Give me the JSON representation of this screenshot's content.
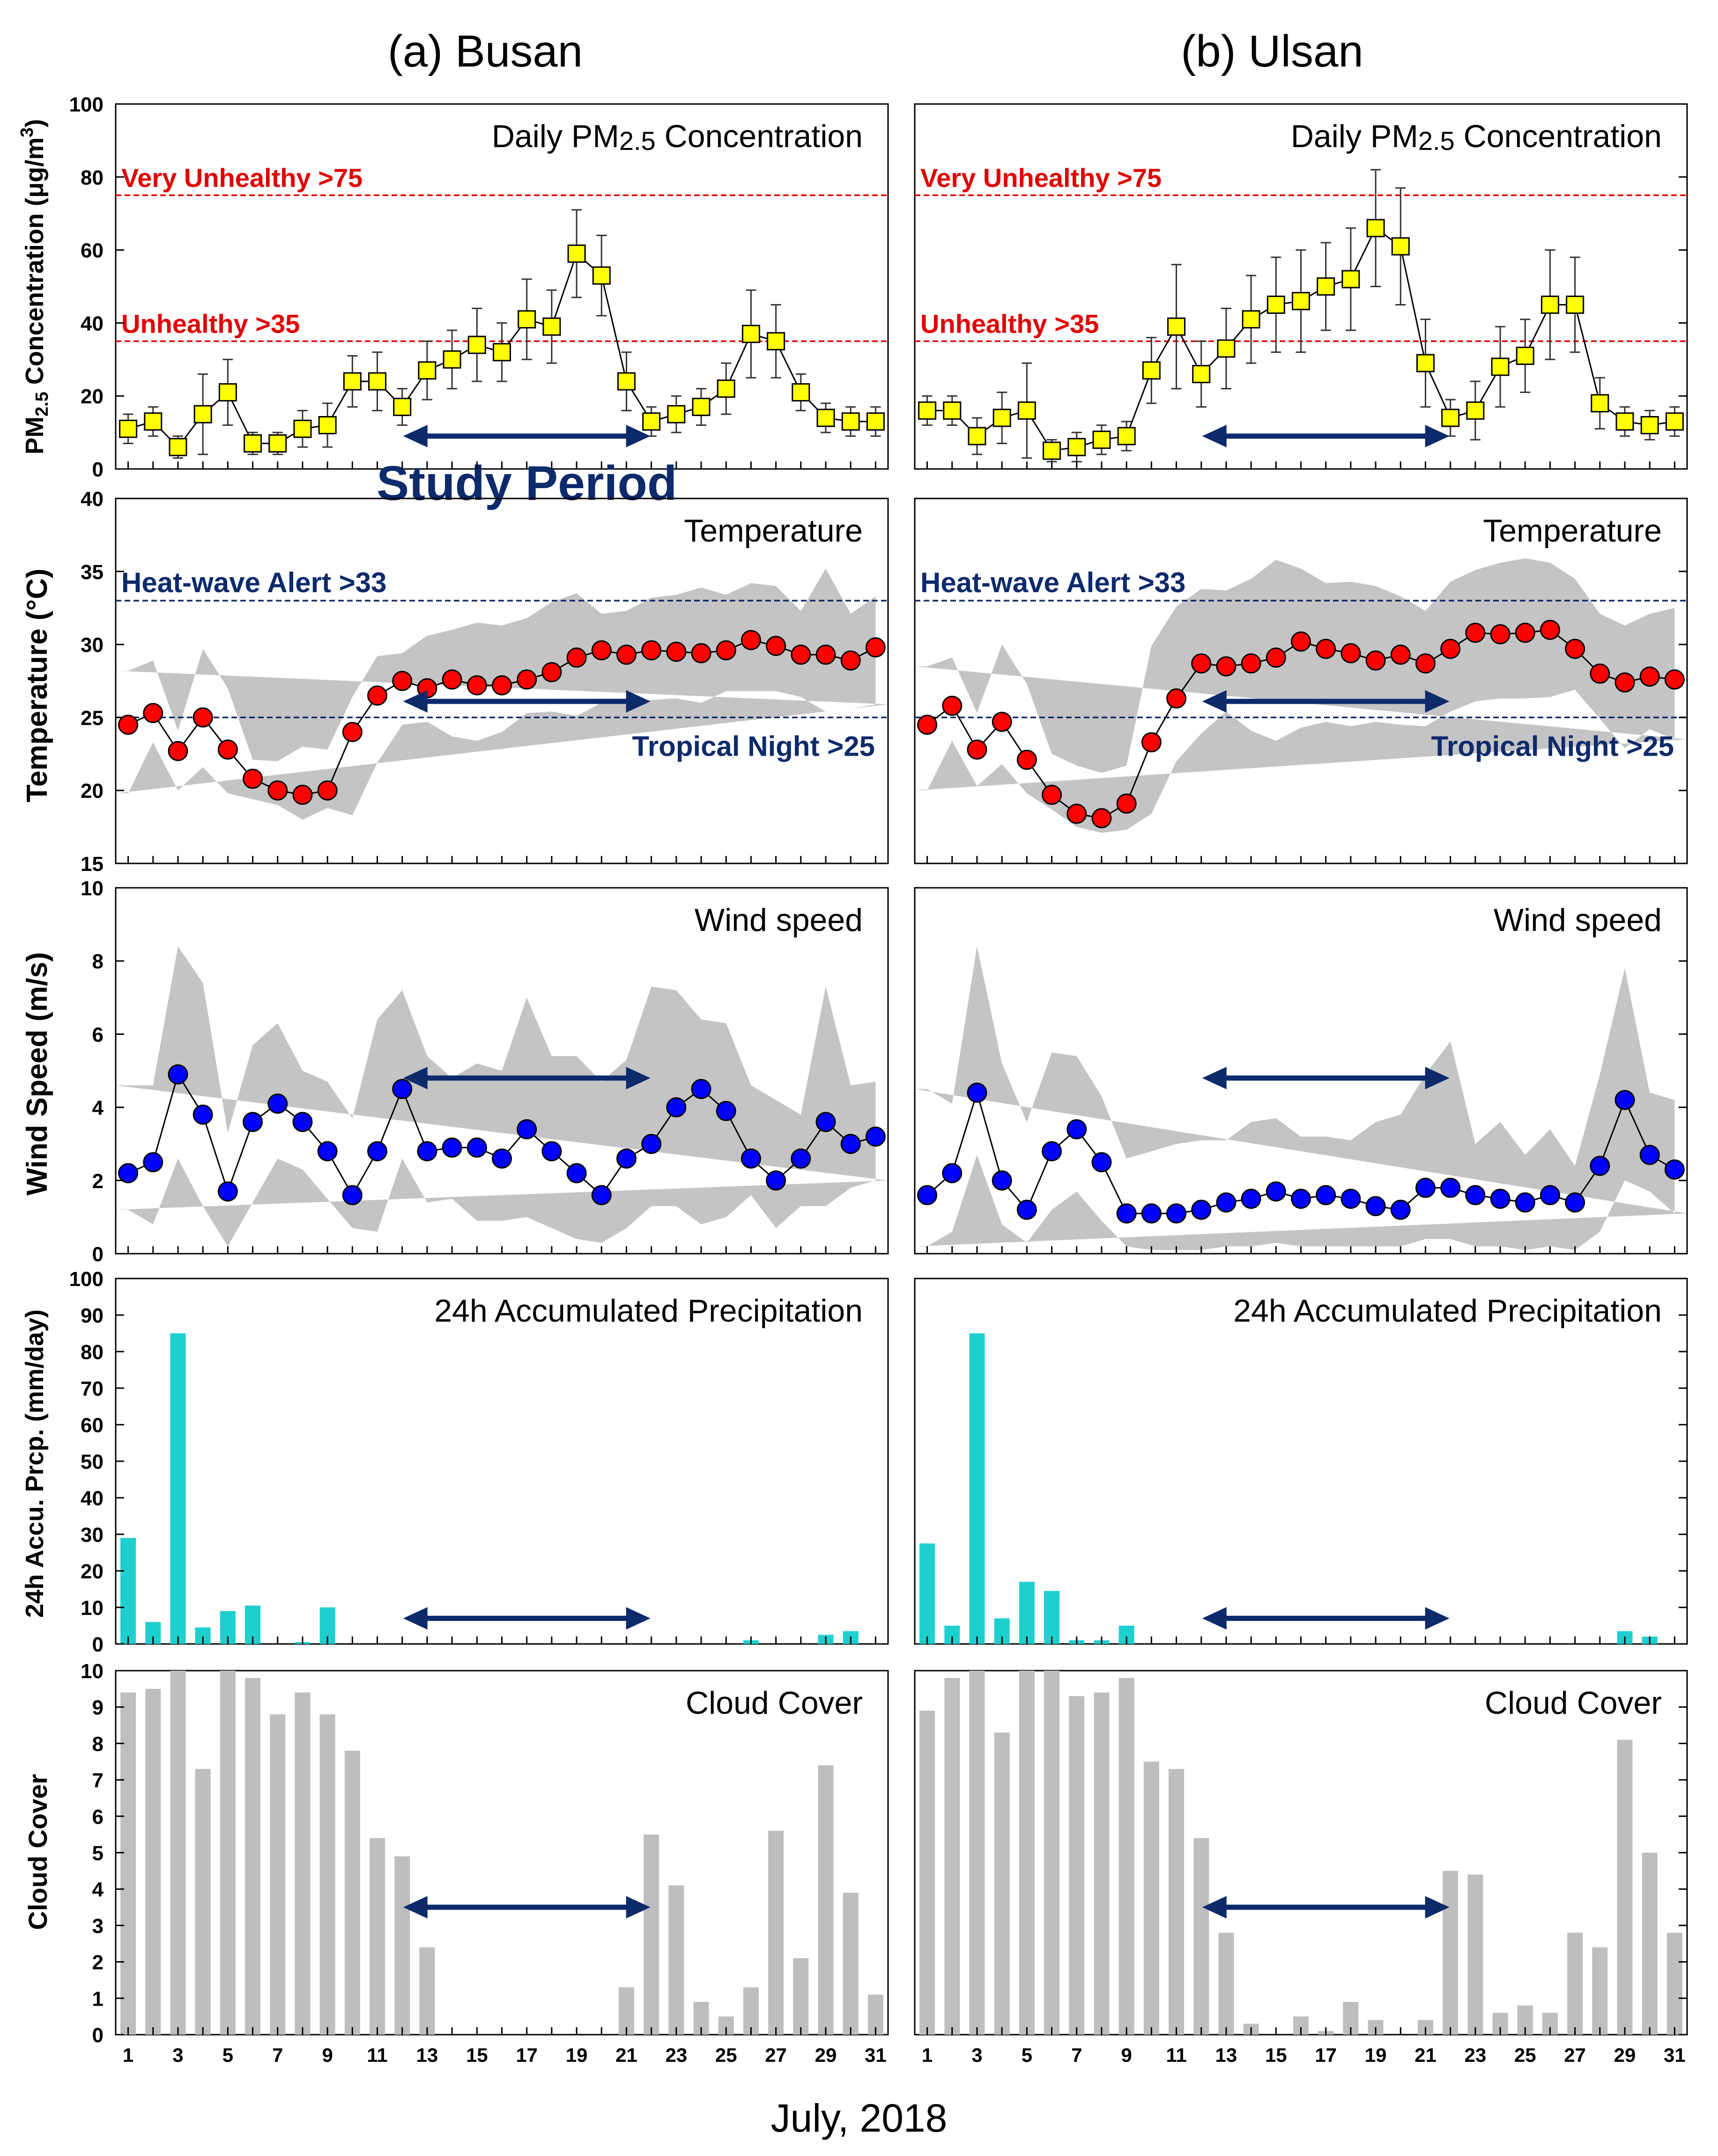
{
  "figure": {
    "xlabel": "July, 2018",
    "study_period_label": "Study Period",
    "columns": [
      {
        "key": "busan",
        "title": "(a) Busan"
      },
      {
        "key": "ulsan",
        "title": "(b) Ulsan"
      }
    ],
    "colors": {
      "pm_marker": "#ffff00",
      "temp_marker": "#ff0000",
      "wind_marker": "#0000ff",
      "precip_bar": "#1ecfcf",
      "cloud_bar": "#bebebe",
      "range_band": "#c4c4c4",
      "arrow": "#0d2a6b",
      "red_threshold": "#e00000",
      "navy_threshold": "#0d2a6b"
    }
  },
  "chart_data": [
    {
      "id": "pm25",
      "type": "line",
      "title": "Daily PM2.5 Concentration",
      "title_main": "Daily PM",
      "title_sub": "2.5",
      "title_tail": " Concentration",
      "ylabel": "PM2.5 Concentration (μg/m3)",
      "ylim": [
        0,
        100
      ],
      "yticks": [
        0,
        20,
        40,
        60,
        80,
        100
      ],
      "xticks": [
        1,
        3,
        5,
        7,
        9,
        11,
        13,
        15,
        17,
        19,
        21,
        23,
        25,
        27,
        29,
        31
      ],
      "thresholds": [
        {
          "value": 75,
          "label": "Very Unhealthy >75",
          "color": "red",
          "label_pos": "left-above"
        },
        {
          "value": 35,
          "label": "Unhealthy >35",
          "color": "red",
          "label_pos": "left-above"
        }
      ],
      "study_arrow": {
        "start_day": 12,
        "end_day": 22,
        "y": 9
      },
      "series": {
        "busan": {
          "values": [
            11,
            13,
            6,
            15,
            21,
            7,
            7,
            11,
            12,
            24,
            24,
            17,
            27,
            30,
            34,
            32,
            41,
            39,
            59,
            53,
            24,
            13,
            15,
            17,
            22,
            37,
            35,
            21,
            14,
            13,
            13
          ],
          "err": [
            4,
            4,
            3,
            11,
            9,
            3,
            3,
            5,
            6,
            7,
            8,
            5,
            8,
            8,
            10,
            8,
            11,
            10,
            12,
            11,
            8,
            4,
            5,
            5,
            7,
            12,
            10,
            5,
            4,
            4,
            4
          ]
        },
        "ulsan": {
          "values": [
            16,
            16,
            9,
            14,
            16,
            5,
            6,
            8,
            9,
            27,
            39,
            26,
            33,
            41,
            45,
            46,
            50,
            52,
            66,
            61,
            29,
            14,
            16,
            28,
            31,
            45,
            45,
            18,
            13,
            12,
            13
          ],
          "err": [
            4,
            4,
            5,
            7,
            13,
            3,
            4,
            4,
            4,
            9,
            17,
            9,
            11,
            12,
            13,
            14,
            12,
            14,
            16,
            16,
            12,
            5,
            8,
            11,
            10,
            15,
            13,
            7,
            4,
            4,
            4
          ]
        }
      }
    },
    {
      "id": "temperature",
      "type": "line",
      "title": "Temperature",
      "ylabel": "Temperature (°C)",
      "ylim": [
        15,
        40
      ],
      "yticks": [
        15,
        20,
        25,
        30,
        35,
        40
      ],
      "xticks": [
        1,
        3,
        5,
        7,
        9,
        11,
        13,
        15,
        17,
        19,
        21,
        23,
        25,
        27,
        29,
        31
      ],
      "thresholds": [
        {
          "value": 33,
          "label": "Heat-wave Alert >33",
          "color": "navy",
          "label_pos": "left-above"
        },
        {
          "value": 25,
          "label": "Tropical Night >25",
          "color": "navy",
          "label_pos": "right-below"
        }
      ],
      "study_arrow": {
        "start_day": 12,
        "end_day": 22,
        "y": 26.1
      },
      "series": {
        "busan": {
          "values": [
            24.5,
            25.3,
            22.7,
            25,
            22.8,
            20.8,
            20,
            19.7,
            20,
            24,
            26.5,
            27.5,
            27,
            27.6,
            27.2,
            27.2,
            27.6,
            28.1,
            29.1,
            29.6,
            29.3,
            29.6,
            29.5,
            29.4,
            29.6,
            30.3,
            29.9,
            29.3,
            29.3,
            28.9,
            29.8
          ],
          "low": [
            19.8,
            23.3,
            20,
            21.6,
            19.8,
            19.4,
            19,
            18,
            18.8,
            18.3,
            21.9,
            24.5,
            24.7,
            23.7,
            23.4,
            24,
            25.3,
            25.4,
            25.1,
            26,
            26,
            26.2,
            26.3,
            26,
            26.8,
            26.8,
            26.8,
            26.4,
            25.4,
            25.6,
            25.9
          ],
          "high": [
            28.2,
            28.9,
            24.1,
            29.7,
            27,
            22.1,
            22,
            23,
            22.8,
            26.4,
            29.2,
            29.4,
            30.6,
            31,
            31.5,
            31.3,
            31.8,
            32.9,
            33.5,
            32.1,
            32.3,
            33.2,
            33.4,
            33.9,
            33.4,
            34.2,
            34,
            32.3,
            35.2,
            32.1,
            33.3
          ]
        },
        "ulsan": {
          "values": [
            24.5,
            25.8,
            22.8,
            24.7,
            22.1,
            19.7,
            18.4,
            18.1,
            19.1,
            23.3,
            26.3,
            28.7,
            28.5,
            28.7,
            29.1,
            30.2,
            29.7,
            29.4,
            28.9,
            29.3,
            28.7,
            29.7,
            30.8,
            30.7,
            30.8,
            31,
            29.7,
            28,
            27.4,
            27.8,
            27.6
          ],
          "low": [
            20,
            23.4,
            20.3,
            21.8,
            19.8,
            18.7,
            17.5,
            17.1,
            17.3,
            18.4,
            22,
            23.9,
            25.4,
            24.1,
            23.4,
            24.3,
            24.7,
            24.4,
            24.7,
            24.5,
            24.4,
            25.4,
            26.1,
            26.3,
            26.3,
            26.4,
            26.9,
            24.9,
            22.9,
            24.2,
            23.5
          ],
          "high": [
            28.5,
            29.1,
            25.3,
            30,
            27.3,
            22.5,
            21.7,
            21.2,
            21.7,
            29.9,
            32.6,
            33.8,
            33.7,
            34.5,
            35.8,
            35.2,
            34.2,
            34.3,
            34,
            33.3,
            32.3,
            34.3,
            35.1,
            35.6,
            35.9,
            35.6,
            34.5,
            32.1,
            31.3,
            32.1,
            32.5
          ]
        }
      }
    },
    {
      "id": "wind",
      "type": "line",
      "title": "Wind speed",
      "ylabel": "Wind Speed (m/s)",
      "ylim": [
        0,
        10
      ],
      "yticks": [
        0,
        2,
        4,
        6,
        8,
        10
      ],
      "xticks": [
        1,
        3,
        5,
        7,
        9,
        11,
        13,
        15,
        17,
        19,
        21,
        23,
        25,
        27,
        29,
        31
      ],
      "thresholds": [],
      "study_arrow": {
        "start_day": 12,
        "end_day": 22,
        "y": 4.8
      },
      "series": {
        "busan": {
          "values": [
            2.2,
            2.5,
            4.9,
            3.8,
            1.7,
            3.6,
            4.1,
            3.6,
            2.8,
            1.6,
            2.8,
            4.5,
            2.8,
            2.9,
            2.9,
            2.6,
            3.4,
            2.8,
            2.2,
            1.6,
            2.6,
            3,
            4,
            4.5,
            3.9,
            2.6,
            2,
            2.6,
            3.6,
            3,
            3.2
          ],
          "low": [
            1.2,
            0.8,
            2.6,
            1.3,
            0.2,
            1.4,
            2.6,
            2.3,
            1.5,
            0.7,
            0.6,
            2.6,
            1.4,
            1.5,
            0.9,
            0.9,
            1,
            0.7,
            0.4,
            0.3,
            0.7,
            1.3,
            1.3,
            0.8,
            1,
            1.6,
            0.7,
            1.3,
            1.3,
            1.8,
            2
          ],
          "high": [
            4.6,
            4.6,
            8.4,
            7.4,
            3.3,
            5.7,
            6.3,
            5,
            4.7,
            3.7,
            6.4,
            7.2,
            5.4,
            4.8,
            5.2,
            5,
            7,
            5.4,
            5.4,
            4.7,
            5.3,
            7.3,
            7.2,
            6.4,
            6.3,
            4.6,
            4.2,
            3.8,
            7.3,
            4.6,
            4.7
          ]
        },
        "ulsan": {
          "values": [
            1.6,
            2.2,
            4.4,
            2,
            1.2,
            2.8,
            3.4,
            2.5,
            1.1,
            1.1,
            1.1,
            1.2,
            1.4,
            1.5,
            1.7,
            1.5,
            1.6,
            1.5,
            1.3,
            1.2,
            1.8,
            1.8,
            1.6,
            1.5,
            1.4,
            1.6,
            1.4,
            2.4,
            4.2,
            2.7,
            2.3
          ],
          "low": [
            0.2,
            0.6,
            2.7,
            0.8,
            0.3,
            1.2,
            1.7,
            0.9,
            0.2,
            0.1,
            0.1,
            0.1,
            0.2,
            0.2,
            0.3,
            0.2,
            0.2,
            0.2,
            0.2,
            0.2,
            0.4,
            0.4,
            0.2,
            0.2,
            0.1,
            0.2,
            0.1,
            0.6,
            2,
            1.7,
            1.1
          ],
          "high": [
            4.5,
            4.1,
            8.4,
            5.2,
            3.6,
            5.5,
            5.4,
            4.3,
            2.6,
            2.8,
            3,
            3.1,
            3.1,
            3.6,
            3.7,
            3.2,
            3.2,
            3.1,
            3.6,
            3.8,
            4.9,
            5.8,
            3,
            3.6,
            2.7,
            3.4,
            2.4,
            4.9,
            7.8,
            4.4,
            4.2
          ]
        }
      }
    },
    {
      "id": "precip",
      "type": "bar",
      "title": "24h Accumulated Precipitation",
      "ylabel": "24h Accu. Prcp. (mm/day)",
      "ylim": [
        0,
        100
      ],
      "yticks": [
        0,
        10,
        20,
        30,
        40,
        50,
        60,
        70,
        80,
        90,
        100
      ],
      "xticks": [
        1,
        3,
        5,
        7,
        9,
        11,
        13,
        15,
        17,
        19,
        21,
        23,
        25,
        27,
        29,
        31
      ],
      "thresholds": [],
      "study_arrow": {
        "start_day": 12,
        "end_day": 22,
        "y": 7
      },
      "series": {
        "busan": {
          "values": [
            29,
            6,
            85,
            4.5,
            9,
            10.5,
            0,
            0.5,
            10,
            0,
            0,
            0,
            0,
            0,
            0,
            0,
            0,
            0,
            0,
            0,
            0,
            0,
            0,
            0,
            0,
            1,
            0,
            0,
            2.5,
            3.5,
            0
          ]
        },
        "ulsan": {
          "values": [
            27.5,
            5,
            85,
            7,
            17,
            14.5,
            1,
            1,
            5,
            0,
            0,
            0,
            0,
            0,
            0,
            0,
            0,
            0,
            0,
            0,
            0,
            0,
            0,
            0,
            0,
            0,
            0,
            0,
            3.5,
            2,
            0
          ]
        }
      }
    },
    {
      "id": "cloud",
      "type": "bar",
      "title": "Cloud Cover",
      "ylabel": "Cloud Cover",
      "ylim": [
        0,
        10
      ],
      "yticks": [
        0,
        1,
        2,
        3,
        4,
        5,
        6,
        7,
        8,
        9,
        10
      ],
      "xticks": [
        1,
        3,
        5,
        7,
        9,
        11,
        13,
        15,
        17,
        19,
        21,
        23,
        25,
        27,
        29,
        31
      ],
      "thresholds": [],
      "study_arrow": {
        "start_day": 12,
        "end_day": 22,
        "y": 3.5
      },
      "series": {
        "busan": {
          "values": [
            9.4,
            9.5,
            10,
            7.3,
            10,
            9.8,
            8.8,
            9.4,
            8.8,
            7.8,
            5.4,
            4.9,
            2.4,
            0,
            0,
            0,
            0,
            0,
            0,
            0,
            1.3,
            5.5,
            4.1,
            0.9,
            0.5,
            1.3,
            5.6,
            2.1,
            7.4,
            3.9,
            1.1
          ]
        },
        "ulsan": {
          "values": [
            8.9,
            9.8,
            10,
            8.3,
            10,
            10,
            9.3,
            9.4,
            9.8,
            7.5,
            7.3,
            5.4,
            2.8,
            0.3,
            0,
            0.5,
            0.1,
            0.9,
            0.4,
            0,
            0.4,
            4.5,
            4.4,
            0.6,
            0.8,
            0.6,
            2.8,
            2.4,
            8.1,
            5,
            2.8
          ]
        }
      }
    }
  ]
}
